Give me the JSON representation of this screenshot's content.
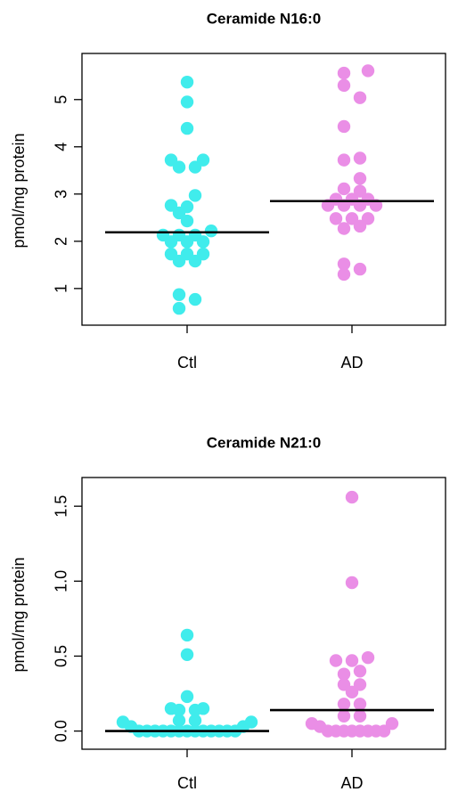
{
  "chart_data": [
    {
      "type": "scatter",
      "title": "Ceramide N16:0",
      "xlabel": "",
      "ylabel": "pmol/mg protein",
      "categories": [
        "Ctl",
        "AD"
      ],
      "yticks": [
        "1",
        "2",
        "3",
        "4",
        "5"
      ],
      "ylim": [
        0.45,
        5.75
      ],
      "grid": false,
      "legend": "none",
      "colors": {
        "Ctl": "#40ecec",
        "AD": "#ea8ee6",
        "median": "#000000"
      },
      "series": [
        {
          "name": "Ctl",
          "median": 2.19,
          "points": [
            {
              "x": 0.0,
              "y": 5.37
            },
            {
              "x": 0.0,
              "y": 4.95
            },
            {
              "x": 0.0,
              "y": 4.39
            },
            {
              "x": -0.18,
              "y": 3.72
            },
            {
              "x": 0.18,
              "y": 3.72
            },
            {
              "x": -0.09,
              "y": 3.57
            },
            {
              "x": 0.09,
              "y": 3.57
            },
            {
              "x": 0.09,
              "y": 2.97
            },
            {
              "x": -0.18,
              "y": 2.76
            },
            {
              "x": 0.0,
              "y": 2.73
            },
            {
              "x": -0.09,
              "y": 2.6
            },
            {
              "x": 0.0,
              "y": 2.43
            },
            {
              "x": 0.27,
              "y": 2.22
            },
            {
              "x": -0.27,
              "y": 2.13
            },
            {
              "x": -0.09,
              "y": 2.13
            },
            {
              "x": 0.09,
              "y": 2.13
            },
            {
              "x": -0.18,
              "y": 1.99
            },
            {
              "x": 0.0,
              "y": 1.99
            },
            {
              "x": 0.18,
              "y": 1.99
            },
            {
              "x": -0.18,
              "y": 1.73
            },
            {
              "x": 0.0,
              "y": 1.73
            },
            {
              "x": 0.18,
              "y": 1.73
            },
            {
              "x": -0.09,
              "y": 1.58
            },
            {
              "x": 0.09,
              "y": 1.58
            },
            {
              "x": -0.09,
              "y": 0.87
            },
            {
              "x": 0.09,
              "y": 0.77
            },
            {
              "x": -0.09,
              "y": 0.58
            }
          ]
        },
        {
          "name": "AD",
          "median": 2.85,
          "points": [
            {
              "x": 0.18,
              "y": 5.61
            },
            {
              "x": -0.09,
              "y": 5.56
            },
            {
              "x": -0.09,
              "y": 5.3
            },
            {
              "x": 0.09,
              "y": 5.04
            },
            {
              "x": -0.09,
              "y": 4.43
            },
            {
              "x": 0.09,
              "y": 3.76
            },
            {
              "x": -0.09,
              "y": 3.72
            },
            {
              "x": 0.09,
              "y": 3.33
            },
            {
              "x": -0.09,
              "y": 3.11
            },
            {
              "x": 0.09,
              "y": 3.06
            },
            {
              "x": -0.18,
              "y": 2.89
            },
            {
              "x": 0.0,
              "y": 2.89
            },
            {
              "x": 0.18,
              "y": 2.89
            },
            {
              "x": -0.27,
              "y": 2.76
            },
            {
              "x": -0.09,
              "y": 2.76
            },
            {
              "x": 0.09,
              "y": 2.76
            },
            {
              "x": 0.27,
              "y": 2.76
            },
            {
              "x": -0.18,
              "y": 2.48
            },
            {
              "x": 0.0,
              "y": 2.48
            },
            {
              "x": 0.18,
              "y": 2.48
            },
            {
              "x": -0.09,
              "y": 2.27
            },
            {
              "x": 0.09,
              "y": 2.32
            },
            {
              "x": -0.09,
              "y": 1.52
            },
            {
              "x": 0.09,
              "y": 1.41
            },
            {
              "x": -0.09,
              "y": 1.3
            }
          ]
        }
      ]
    },
    {
      "type": "scatter",
      "title": "Ceramide N21:0",
      "xlabel": "",
      "ylabel": "pmol/mg protein",
      "categories": [
        "Ctl",
        "AD"
      ],
      "yticks": [
        "0.0",
        "0.5",
        "1.0",
        "1.5"
      ],
      "ylim": [
        -0.05,
        1.62
      ],
      "grid": false,
      "legend": "none",
      "colors": {
        "Ctl": "#40ecec",
        "AD": "#ea8ee6",
        "median": "#000000"
      },
      "series": [
        {
          "name": "Ctl",
          "median": 0.0,
          "points": [
            {
              "x": 0.0,
              "y": 0.64
            },
            {
              "x": 0.0,
              "y": 0.51
            },
            {
              "x": 0.0,
              "y": 0.23
            },
            {
              "x": -0.18,
              "y": 0.15
            },
            {
              "x": 0.18,
              "y": 0.15
            },
            {
              "x": -0.09,
              "y": 0.14
            },
            {
              "x": 0.09,
              "y": 0.14
            },
            {
              "x": -0.09,
              "y": 0.07
            },
            {
              "x": 0.09,
              "y": 0.07
            },
            {
              "x": -0.72,
              "y": 0.06
            },
            {
              "x": 0.72,
              "y": 0.06
            },
            {
              "x": -0.63,
              "y": 0.03
            },
            {
              "x": 0.63,
              "y": 0.03
            },
            {
              "x": -0.54,
              "y": 0.0
            },
            {
              "x": -0.45,
              "y": 0.0
            },
            {
              "x": -0.36,
              "y": 0.0
            },
            {
              "x": -0.27,
              "y": 0.0
            },
            {
              "x": -0.18,
              "y": 0.0
            },
            {
              "x": -0.09,
              "y": 0.0
            },
            {
              "x": 0.0,
              "y": 0.0
            },
            {
              "x": 0.09,
              "y": 0.0
            },
            {
              "x": 0.18,
              "y": 0.0
            },
            {
              "x": 0.27,
              "y": 0.0
            },
            {
              "x": 0.36,
              "y": 0.0
            },
            {
              "x": 0.45,
              "y": 0.0
            },
            {
              "x": 0.54,
              "y": 0.0
            }
          ]
        },
        {
          "name": "AD",
          "median": 0.14,
          "points": [
            {
              "x": 0.0,
              "y": 1.56
            },
            {
              "x": 0.0,
              "y": 0.99
            },
            {
              "x": 0.18,
              "y": 0.49
            },
            {
              "x": -0.18,
              "y": 0.47
            },
            {
              "x": 0.0,
              "y": 0.47
            },
            {
              "x": 0.09,
              "y": 0.4
            },
            {
              "x": -0.09,
              "y": 0.38
            },
            {
              "x": -0.09,
              "y": 0.31
            },
            {
              "x": 0.09,
              "y": 0.31
            },
            {
              "x": 0.0,
              "y": 0.26
            },
            {
              "x": -0.09,
              "y": 0.18
            },
            {
              "x": 0.09,
              "y": 0.18
            },
            {
              "x": -0.09,
              "y": 0.1
            },
            {
              "x": 0.09,
              "y": 0.1
            },
            {
              "x": -0.45,
              "y": 0.05
            },
            {
              "x": 0.45,
              "y": 0.05
            },
            {
              "x": -0.36,
              "y": 0.03
            },
            {
              "x": -0.27,
              "y": 0.0
            },
            {
              "x": -0.18,
              "y": 0.0
            },
            {
              "x": -0.09,
              "y": 0.0
            },
            {
              "x": 0.0,
              "y": 0.0
            },
            {
              "x": 0.09,
              "y": 0.0
            },
            {
              "x": 0.18,
              "y": 0.0
            },
            {
              "x": 0.27,
              "y": 0.0
            },
            {
              "x": 0.36,
              "y": 0.0
            }
          ]
        }
      ]
    }
  ]
}
